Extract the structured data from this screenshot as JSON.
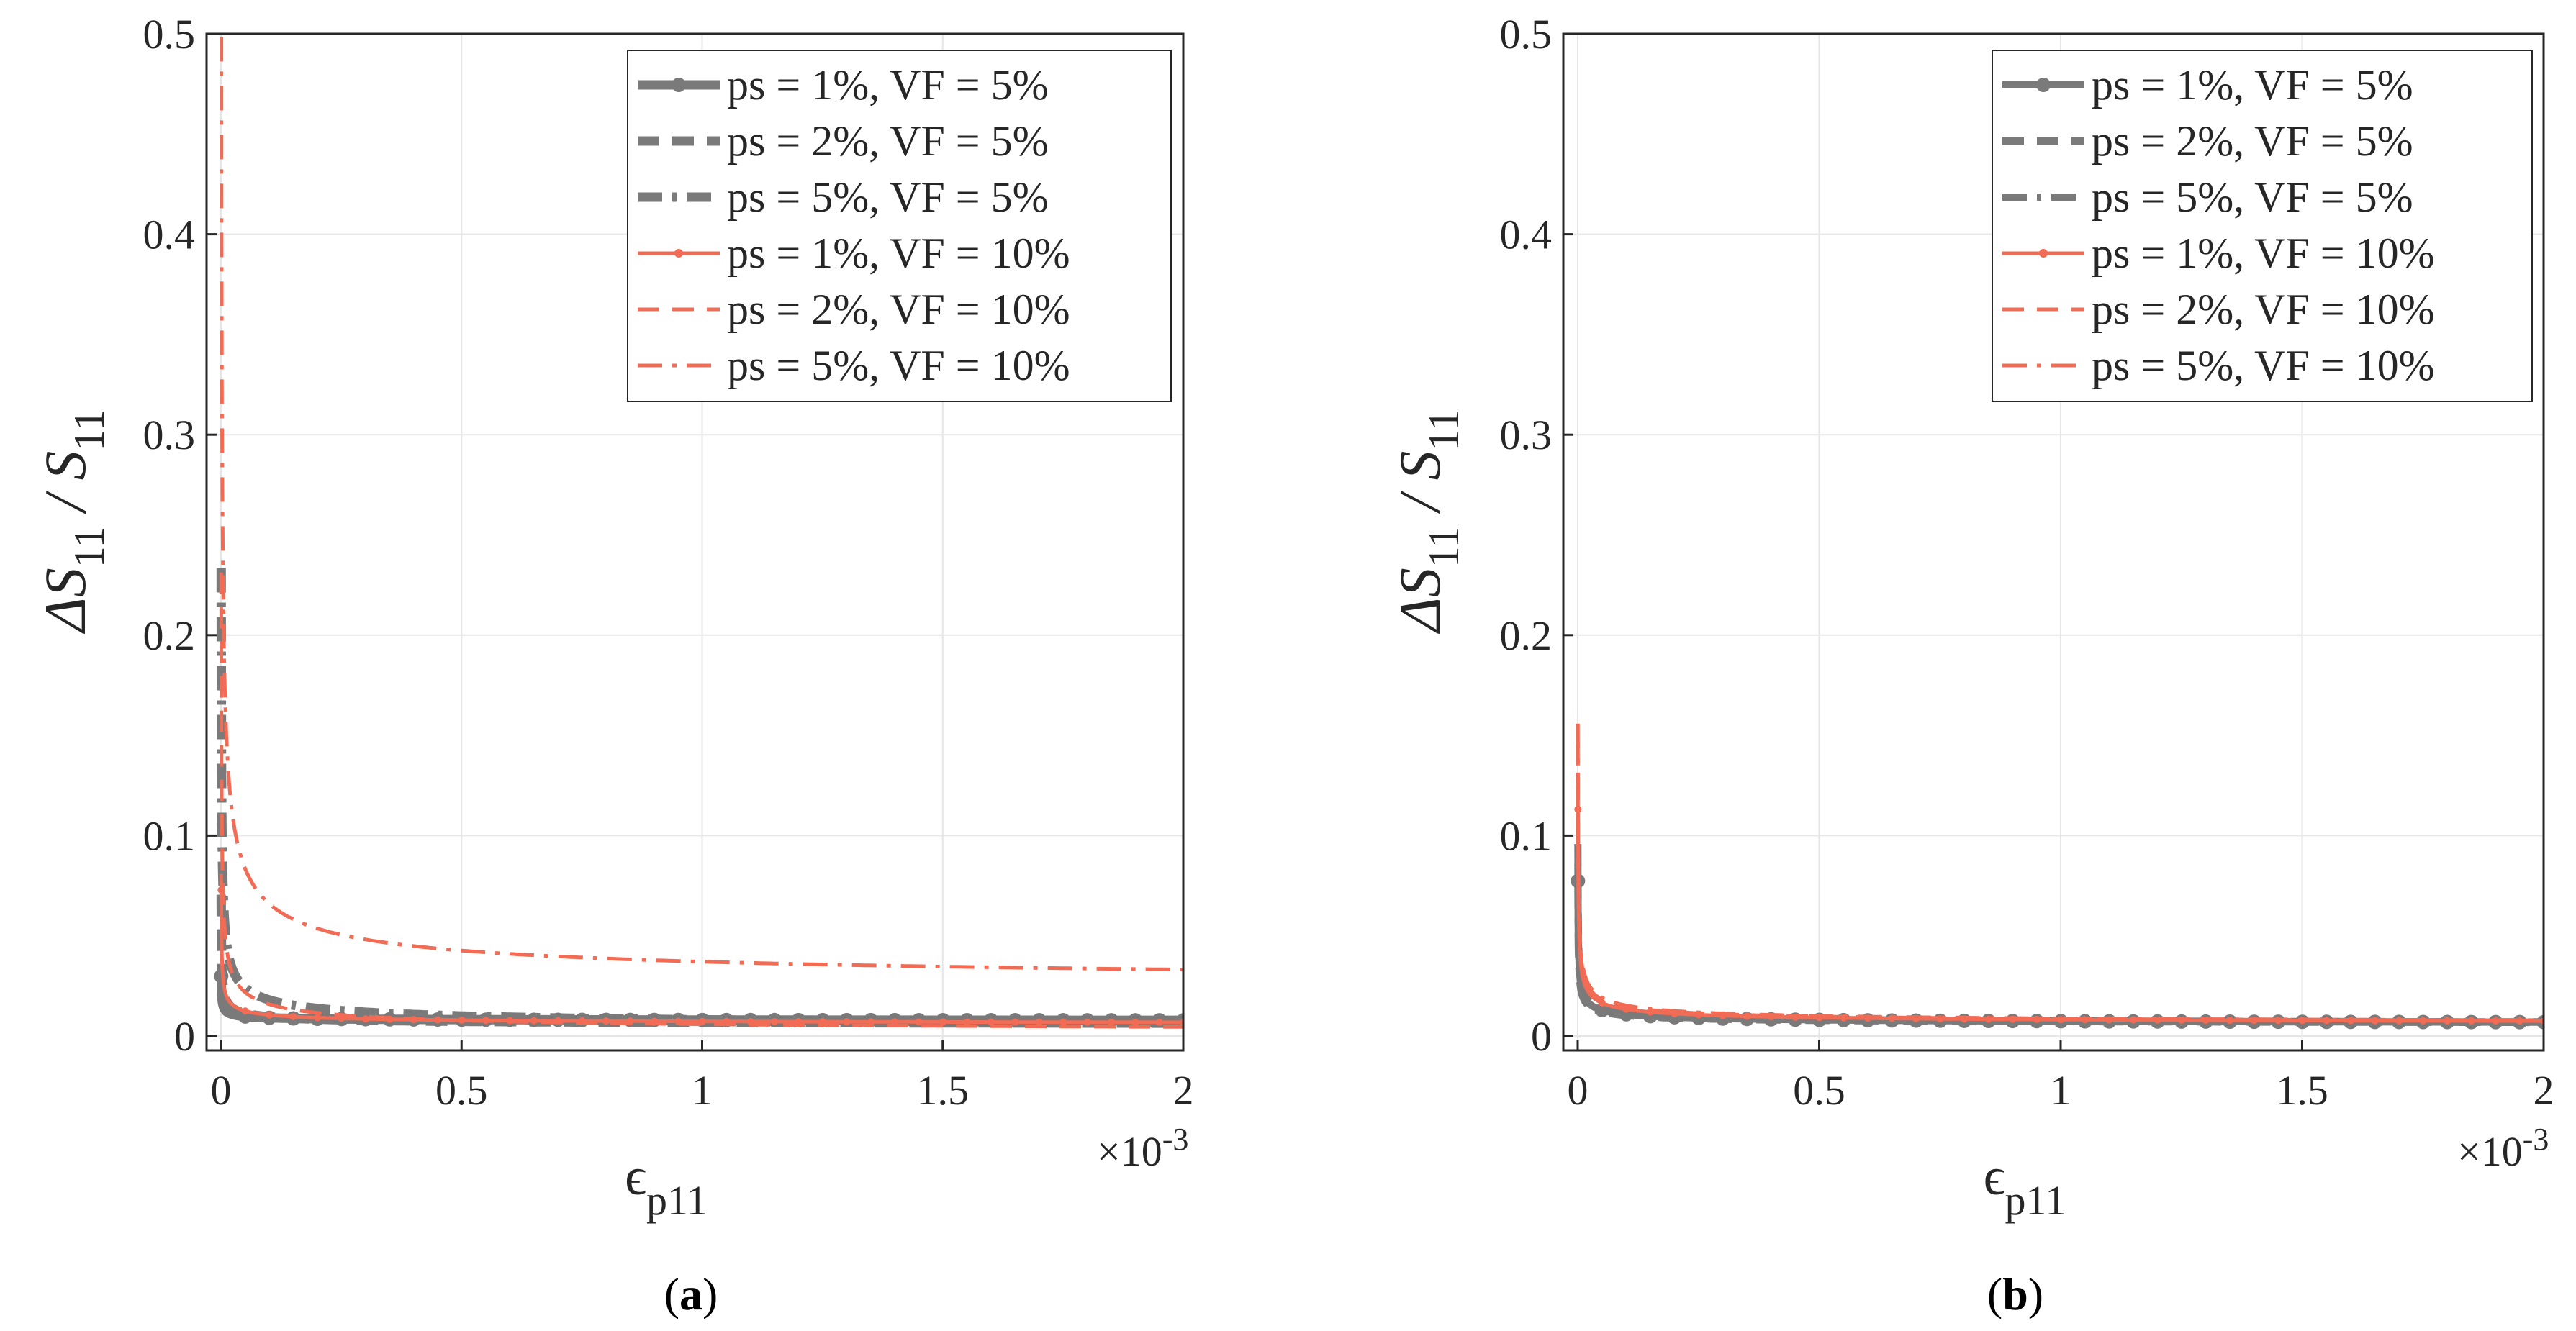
{
  "chart_data": [
    {
      "type": "line",
      "panel": "a",
      "caption": {
        "open": "(",
        "letter": "a",
        "close": ")"
      },
      "xlabel": "ϵ",
      "xlabel_sub": "p11",
      "ylabel": "ΔS",
      "ylabel_sub": "11",
      "ylabel_mid": "/ S",
      "ylabel_sub2": "11",
      "x_multiplier": {
        "base": "×10",
        "exp": "-3"
      },
      "xlim": [
        0,
        2
      ],
      "ylim": [
        0,
        0.5
      ],
      "xticks": [
        "0",
        "0.5",
        "1",
        "1.5",
        "2"
      ],
      "yticks": [
        "0",
        "0.1",
        "0.2",
        "0.3",
        "0.4",
        "0.5"
      ],
      "grid": true,
      "legend_position": "top-right",
      "series": [
        {
          "name": "ps = 1%, VF = 5%",
          "color": "#7a7a7a",
          "style": "solid-markers",
          "a": 0.0005,
          "c": 0.0075
        },
        {
          "name": "ps = 2%, VF = 5%",
          "color": "#7a7a7a",
          "style": "dash",
          "a": 0.0013,
          "c": 0.0055
        },
        {
          "name": "ps = 5%, VF = 5%",
          "color": "#7a7a7a",
          "style": "dashdot",
          "a": 0.0046,
          "c": 0.0035
        },
        {
          "name": "ps = 1%, VF = 10%",
          "color": "#f26b55",
          "style": "solid-markers",
          "a": 0.0015,
          "c": 0.0058
        },
        {
          "name": "ps = 2%, VF = 10%",
          "color": "#f26b55",
          "style": "dash",
          "a": 0.0046,
          "c": 0.0013
        },
        {
          "name": "ps = 5%, VF = 10%",
          "color": "#f26b55",
          "style": "dashdot",
          "a": 0.0134,
          "c": 0.0237
        }
      ]
    },
    {
      "type": "line",
      "panel": "b",
      "caption": {
        "open": "(",
        "letter": "b",
        "close": ")"
      },
      "xlabel": "ϵ",
      "xlabel_sub": "p11",
      "ylabel": "ΔS",
      "ylabel_sub": "11",
      "ylabel_mid": "/ S",
      "ylabel_sub2": "11",
      "x_multiplier": {
        "base": "×10",
        "exp": "-3"
      },
      "xlim": [
        0,
        2
      ],
      "ylim": [
        0,
        0.5
      ],
      "xticks": [
        "0",
        "0.5",
        "1",
        "1.5",
        "2"
      ],
      "yticks": [
        "0",
        "0.1",
        "0.2",
        "0.3",
        "0.4",
        "0.5"
      ],
      "grid": true,
      "legend_position": "top-right",
      "series": [
        {
          "name": "ps = 1%, VF = 5%",
          "color": "#7a7a7a",
          "style": "solid-markers",
          "a": 0.0016,
          "c": 0.0058
        },
        {
          "name": "ps = 2%, VF = 5%",
          "color": "#7a7a7a",
          "style": "dash",
          "a": 0.0018,
          "c": 0.0058
        },
        {
          "name": "ps = 5%, VF = 5%",
          "color": "#7a7a7a",
          "style": "dashdot",
          "a": 0.0014,
          "c": 0.0058
        },
        {
          "name": "ps = 1%, VF = 10%",
          "color": "#f26b55",
          "style": "solid-markers",
          "a": 0.0024,
          "c": 0.0058
        },
        {
          "name": "ps = 2%, VF = 10%",
          "color": "#f26b55",
          "style": "dash",
          "a": 0.0028,
          "c": 0.0058
        },
        {
          "name": "ps = 5%, VF = 10%",
          "color": "#f26b55",
          "style": "dashdot",
          "a": 0.003,
          "c": 0.0058
        }
      ]
    }
  ]
}
